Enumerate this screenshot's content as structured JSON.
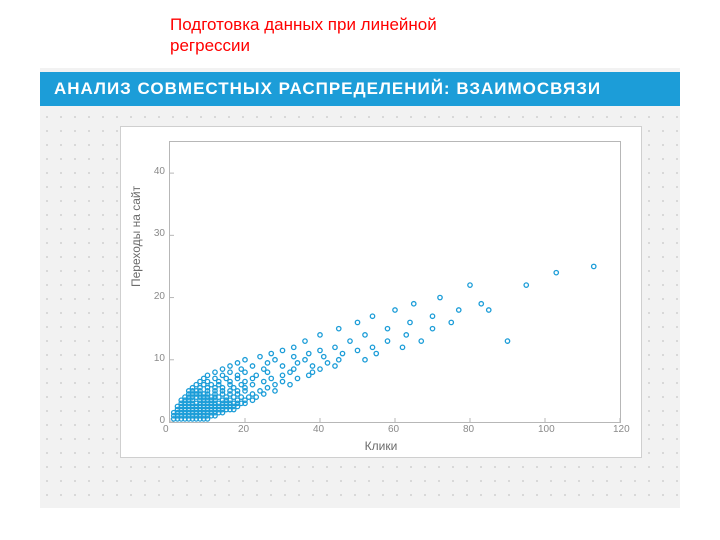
{
  "caption": "Подготовка данных при линейной регрессии",
  "banner": {
    "text": "АНАЛИЗ СОВМЕСТНЫХ РАСПРЕДЕЛЕНИЙ: ВЗАИМОСВЯЗИ",
    "background": "#1c9dd8",
    "color": "#ffffff",
    "fontsize": 17
  },
  "panel": {
    "background": "#f2f2f2",
    "dot_color": "#d8d8d8"
  },
  "chart": {
    "type": "scatter",
    "xlabel": "Клики",
    "ylabel": "Переходы на сайт",
    "xlim": [
      0,
      120
    ],
    "ylim": [
      0,
      45
    ],
    "xticks": [
      0,
      20,
      40,
      60,
      80,
      100,
      120
    ],
    "yticks": [
      0,
      10,
      20,
      30,
      40
    ],
    "marker": {
      "shape": "circle",
      "radius": 2.2,
      "stroke": "#1c9dd8",
      "fill": "none",
      "stroke_width": 1.3
    },
    "axis_color": "#b7b7b7",
    "grid": false,
    "plot_background": "#ffffff",
    "tick_color": "#8a8a8a",
    "label_color": "#6b6b6b",
    "label_fontsize": 12,
    "points": [
      [
        1,
        0.5
      ],
      [
        2,
        0.5
      ],
      [
        3,
        0.5
      ],
      [
        4,
        0.5
      ],
      [
        5,
        0.5
      ],
      [
        6,
        0.5
      ],
      [
        7,
        0.5
      ],
      [
        8,
        0.5
      ],
      [
        9,
        0.5
      ],
      [
        10,
        0.5
      ],
      [
        1,
        1
      ],
      [
        2,
        1
      ],
      [
        3,
        1
      ],
      [
        4,
        1
      ],
      [
        5,
        1
      ],
      [
        6,
        1
      ],
      [
        7,
        1
      ],
      [
        8,
        1
      ],
      [
        9,
        1
      ],
      [
        10,
        1
      ],
      [
        11,
        1
      ],
      [
        12,
        1
      ],
      [
        1,
        1.5
      ],
      [
        2,
        1.5
      ],
      [
        3,
        1.5
      ],
      [
        4,
        1.5
      ],
      [
        5,
        1.5
      ],
      [
        6,
        1.5
      ],
      [
        7,
        1.5
      ],
      [
        8,
        1.5
      ],
      [
        9,
        1.5
      ],
      [
        10,
        1.5
      ],
      [
        11,
        1.5
      ],
      [
        12,
        1.5
      ],
      [
        13,
        1.5
      ],
      [
        14,
        1.5
      ],
      [
        2,
        2
      ],
      [
        3,
        2
      ],
      [
        4,
        2
      ],
      [
        5,
        2
      ],
      [
        6,
        2
      ],
      [
        7,
        2
      ],
      [
        8,
        2
      ],
      [
        9,
        2
      ],
      [
        10,
        2
      ],
      [
        11,
        2
      ],
      [
        12,
        2
      ],
      [
        13,
        2
      ],
      [
        14,
        2
      ],
      [
        15,
        2
      ],
      [
        16,
        2
      ],
      [
        17,
        2
      ],
      [
        2,
        2.5
      ],
      [
        3,
        2.5
      ],
      [
        4,
        2.5
      ],
      [
        5,
        2.5
      ],
      [
        6,
        2.5
      ],
      [
        7,
        2.5
      ],
      [
        8,
        2.5
      ],
      [
        9,
        2.5
      ],
      [
        10,
        2.5
      ],
      [
        11,
        2.5
      ],
      [
        12,
        2.5
      ],
      [
        13,
        2.5
      ],
      [
        14,
        2.5
      ],
      [
        15,
        2.5
      ],
      [
        16,
        2.5
      ],
      [
        17,
        2.5
      ],
      [
        18,
        2.5
      ],
      [
        3,
        3
      ],
      [
        4,
        3
      ],
      [
        5,
        3
      ],
      [
        6,
        3
      ],
      [
        7,
        3
      ],
      [
        8,
        3
      ],
      [
        9,
        3
      ],
      [
        10,
        3
      ],
      [
        11,
        3
      ],
      [
        12,
        3
      ],
      [
        13,
        3
      ],
      [
        14,
        3
      ],
      [
        15,
        3
      ],
      [
        16,
        3
      ],
      [
        17,
        3
      ],
      [
        18,
        3
      ],
      [
        19,
        3
      ],
      [
        20,
        3
      ],
      [
        3,
        3.5
      ],
      [
        4,
        3.5
      ],
      [
        5,
        3.5
      ],
      [
        6,
        3.5
      ],
      [
        8,
        3.5
      ],
      [
        9,
        3.5
      ],
      [
        10,
        3.5
      ],
      [
        11,
        3.5
      ],
      [
        12,
        3.5
      ],
      [
        14,
        3.5
      ],
      [
        15,
        3.5
      ],
      [
        16,
        3.5
      ],
      [
        18,
        3.5
      ],
      [
        20,
        3.5
      ],
      [
        22,
        3.5
      ],
      [
        4,
        4
      ],
      [
        5,
        4
      ],
      [
        6,
        4
      ],
      [
        7,
        4
      ],
      [
        8,
        4
      ],
      [
        9,
        4
      ],
      [
        10,
        4
      ],
      [
        11,
        4
      ],
      [
        12,
        4
      ],
      [
        13,
        4
      ],
      [
        15,
        4
      ],
      [
        17,
        4
      ],
      [
        19,
        4
      ],
      [
        21,
        4
      ],
      [
        23,
        4
      ],
      [
        5,
        4.5
      ],
      [
        6,
        4.5
      ],
      [
        7,
        4.5
      ],
      [
        8,
        4.5
      ],
      [
        9,
        4.5
      ],
      [
        10,
        4.5
      ],
      [
        12,
        4.5
      ],
      [
        14,
        4.5
      ],
      [
        16,
        4.5
      ],
      [
        18,
        4.5
      ],
      [
        22,
        4.5
      ],
      [
        25,
        4.5
      ],
      [
        5,
        5
      ],
      [
        6,
        5
      ],
      [
        7,
        5
      ],
      [
        8,
        5
      ],
      [
        10,
        5
      ],
      [
        12,
        5
      ],
      [
        14,
        5
      ],
      [
        16,
        5
      ],
      [
        18,
        5
      ],
      [
        20,
        5
      ],
      [
        24,
        5
      ],
      [
        28,
        5
      ],
      [
        6,
        5.5
      ],
      [
        8,
        5.5
      ],
      [
        10,
        5.5
      ],
      [
        12,
        5.5
      ],
      [
        14,
        5.5
      ],
      [
        17,
        5.5
      ],
      [
        20,
        5.5
      ],
      [
        26,
        5.5
      ],
      [
        7,
        6
      ],
      [
        9,
        6
      ],
      [
        11,
        6
      ],
      [
        13,
        6
      ],
      [
        16,
        6
      ],
      [
        19,
        6
      ],
      [
        22,
        6
      ],
      [
        28,
        6
      ],
      [
        32,
        6
      ],
      [
        8,
        6.5
      ],
      [
        10,
        6.5
      ],
      [
        13,
        6.5
      ],
      [
        16,
        6.5
      ],
      [
        20,
        6.5
      ],
      [
        25,
        6.5
      ],
      [
        30,
        6.5
      ],
      [
        9,
        7
      ],
      [
        12,
        7
      ],
      [
        15,
        7
      ],
      [
        18,
        7
      ],
      [
        22,
        7
      ],
      [
        27,
        7
      ],
      [
        34,
        7
      ],
      [
        10,
        7.5
      ],
      [
        14,
        7.5
      ],
      [
        18,
        7.5
      ],
      [
        23,
        7.5
      ],
      [
        30,
        7.5
      ],
      [
        37,
        7.5
      ],
      [
        12,
        8
      ],
      [
        16,
        8
      ],
      [
        20,
        8
      ],
      [
        26,
        8
      ],
      [
        32,
        8
      ],
      [
        38,
        8
      ],
      [
        14,
        8.5
      ],
      [
        19,
        8.5
      ],
      [
        25,
        8.5
      ],
      [
        33,
        8.5
      ],
      [
        40,
        8.5
      ],
      [
        16,
        9
      ],
      [
        22,
        9
      ],
      [
        30,
        9
      ],
      [
        38,
        9
      ],
      [
        44,
        9
      ],
      [
        18,
        9.5
      ],
      [
        26,
        9.5
      ],
      [
        34,
        9.5
      ],
      [
        42,
        9.5
      ],
      [
        20,
        10
      ],
      [
        28,
        10
      ],
      [
        36,
        10
      ],
      [
        45,
        10
      ],
      [
        52,
        10
      ],
      [
        24,
        10.5
      ],
      [
        33,
        10.5
      ],
      [
        41,
        10.5
      ],
      [
        27,
        11
      ],
      [
        37,
        11
      ],
      [
        46,
        11
      ],
      [
        55,
        11
      ],
      [
        30,
        11.5
      ],
      [
        40,
        11.5
      ],
      [
        50,
        11.5
      ],
      [
        33,
        12
      ],
      [
        44,
        12
      ],
      [
        54,
        12
      ],
      [
        62,
        12
      ],
      [
        36,
        13
      ],
      [
        48,
        13
      ],
      [
        58,
        13
      ],
      [
        67,
        13
      ],
      [
        40,
        14
      ],
      [
        52,
        14
      ],
      [
        63,
        14
      ],
      [
        45,
        15
      ],
      [
        58,
        15
      ],
      [
        70,
        15
      ],
      [
        50,
        16
      ],
      [
        64,
        16
      ],
      [
        75,
        16
      ],
      [
        54,
        17
      ],
      [
        70,
        17
      ],
      [
        60,
        18
      ],
      [
        77,
        18
      ],
      [
        65,
        19
      ],
      [
        83,
        19
      ],
      [
        72,
        20
      ],
      [
        80,
        22
      ],
      [
        95,
        22
      ],
      [
        103,
        24
      ],
      [
        113,
        25
      ],
      [
        90,
        13
      ],
      [
        85,
        18
      ],
      [
        33,
        -1
      ],
      [
        12,
        -1
      ],
      [
        20,
        -1
      ],
      [
        5,
        -1
      ],
      [
        45,
        -1
      ],
      [
        58,
        -1
      ]
    ]
  }
}
